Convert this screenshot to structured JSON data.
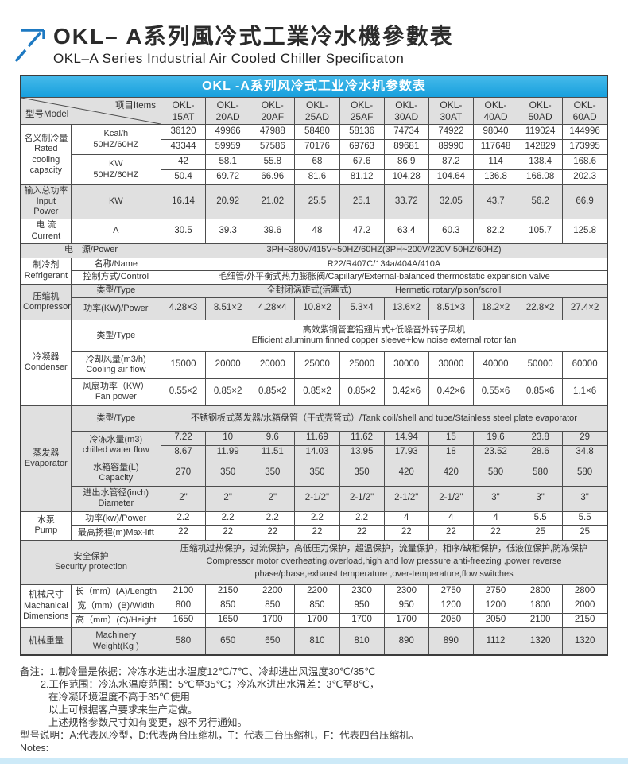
{
  "page": {
    "title_cn": "OKL– A系列風冷式工業冷水機參數表",
    "subtitle_en": "OKL–A Series Industrial Air Cooled Chiller Specificaton"
  },
  "colors": {
    "banner_blue": "#29a9e1",
    "row_gray": "#e0e0e0",
    "accent_blue": "#1d79c2",
    "footer_strip": "#cdeaf8"
  },
  "table": {
    "banner": "OKL -A系列风冷式工业冷水机参数表",
    "corner": {
      "model": "型号Model",
      "items": "项目Items"
    },
    "models": [
      "OKL-15AT",
      "OKL-20AD",
      "OKL-20AF",
      "OKL-25AD",
      "OKL-25AF",
      "OKL-30AD",
      "OKL-30AT",
      "OKL-40AD",
      "OKL-50AD",
      "OKL-60AD"
    ],
    "labels": {
      "rated": "名义制冷量\nRated\ncooling\ncapacity",
      "kcal": "Kcal/h\n50HZ/60HZ",
      "kw": "KW\n50HZ/60HZ",
      "input_power": "输入总功率\nInput Power",
      "input_unit": "KW",
      "current": "电 流\nCurrent",
      "current_unit": "A",
      "power_source": "电　源/Power",
      "refrigerant": "制冷剂\nRefrigerant",
      "name": "名称/Name",
      "control": "控制方式/Control",
      "compressor": "压缩机\nCompressor",
      "type": "类型/Type",
      "comp_power": "功率(KW)/Power",
      "condenser": "冷凝器\nCondenser",
      "air_flow": "冷却风量(m3/h)\nCooling air flow",
      "fan_power": "风扇功率（KW）\nFan power",
      "evaporator": "蒸发器\nEvaporator",
      "chw": "冷冻水量(m3)\nchilled water flow",
      "tank": "水箱容量(L)\nCapacity",
      "diameter": "进出水管径(inch)\nDiameter",
      "pump": "水泵\nPump",
      "pump_power": "功率(kw)/Power",
      "max_lift": "最高扬程(m)Max-lift",
      "security": "安全保护\nSecurity protection",
      "dimensions": "机械尺寸\nMachanical\nDimensions",
      "length": "长（mm）(A)/Length",
      "width": "宽（mm）(B)/Width",
      "height": "高（mm）(C)/Height",
      "weight_cn": "机械重量",
      "weight_en": "Machinery\nWeight(Kg )"
    },
    "merged": {
      "power_source_value": "3PH~380V/415V~50HZ/60HZ(3PH~200V/220V  50HZ/60HZ)",
      "refrigerant_name": "R22/R407C/134a/404A/410A",
      "control_value": "毛细管/外平衡式热力膨胀阀/Capillary/External-balanced thermostatic expansion valve",
      "compressor_type_cn": "全封闭涡旋式(活塞式)",
      "compressor_type_en": "Hermetic rotary/pison/scroll",
      "condenser_type_cn": "高效紫铜管套铝翅片式+低噪音外转子风机",
      "condenser_type_en": "Efficient aluminum finned copper sleeve+low noise external rotor fan",
      "evaporator_type": "不锈钢板式蒸发器/水箱盘管（干式壳管式）/Tank coil/shell and tube/Stainless steel plate evaporator",
      "security_value": "压缩机过热保护，过流保护，高低压力保护，超温保护，流量保护，相序/缺相保护，低液位保护,防冻保护\nCompressor motor overheating,overload,high and low pressure,anti-freezing ,power reverse\nphase/phase,exhaust temperature ,over-temperature,flow switches"
    },
    "values": {
      "kcal_50": [
        "36120",
        "49966",
        "47988",
        "58480",
        "58136",
        "74734",
        "74922",
        "98040",
        "119024",
        "144996"
      ],
      "kcal_60": [
        "43344",
        "59959",
        "57586",
        "70176",
        "69763",
        "89681",
        "89990",
        "117648",
        "142829",
        "173995"
      ],
      "kw_50": [
        "42",
        "58.1",
        "55.8",
        "68",
        "67.6",
        "86.9",
        "87.2",
        "114",
        "138.4",
        "168.6"
      ],
      "kw_60": [
        "50.4",
        "69.72",
        "66.96",
        "81.6",
        "81.12",
        "104.28",
        "104.64",
        "136.8",
        "166.08",
        "202.3"
      ],
      "input_power": [
        "16.14",
        "20.92",
        "21.02",
        "25.5",
        "25.1",
        "33.72",
        "32.05",
        "43.7",
        "56.2",
        "66.9"
      ],
      "current": [
        "30.5",
        "39.3",
        "39.6",
        "48",
        "47.2",
        "63.4",
        "60.3",
        "82.2",
        "105.7",
        "125.8"
      ],
      "comp_power": [
        "4.28×3",
        "8.51×2",
        "4.28×4",
        "10.8×2",
        "5.3×4",
        "13.6×2",
        "8.51×3",
        "18.2×2",
        "22.8×2",
        "27.4×2"
      ],
      "air_flow": [
        "15000",
        "20000",
        "20000",
        "25000",
        "25000",
        "30000",
        "30000",
        "40000",
        "50000",
        "60000"
      ],
      "fan_power": [
        "0.55×2",
        "0.85×2",
        "0.85×2",
        "0.85×2",
        "0.85×2",
        "0.42×6",
        "0.42×6",
        "0.55×6",
        "0.85×6",
        "1.1×6"
      ],
      "chw_50": [
        "7.22",
        "10",
        "9.6",
        "11.69",
        "11.62",
        "14.94",
        "15",
        "19.6",
        "23.8",
        "29"
      ],
      "chw_60": [
        "8.67",
        "11.99",
        "11.51",
        "14.03",
        "13.95",
        "17.93",
        "18",
        "23.52",
        "28.6",
        "34.8"
      ],
      "tank": [
        "270",
        "350",
        "350",
        "350",
        "350",
        "420",
        "420",
        "580",
        "580",
        "580"
      ],
      "diameter": [
        "2\"",
        "2\"",
        "2\"",
        "2-1/2\"",
        "2-1/2\"",
        "2-1/2\"",
        "2-1/2\"",
        "3\"",
        "3\"",
        "3\""
      ],
      "pump_power": [
        "2.2",
        "2.2",
        "2.2",
        "2.2",
        "2.2",
        "4",
        "4",
        "4",
        "5.5",
        "5.5"
      ],
      "max_lift": [
        "22",
        "22",
        "22",
        "22",
        "22",
        "22",
        "22",
        "22",
        "25",
        "25"
      ],
      "length": [
        "2100",
        "2150",
        "2200",
        "2200",
        "2300",
        "2300",
        "2750",
        "2750",
        "2800",
        "2800"
      ],
      "width": [
        "800",
        "850",
        "850",
        "850",
        "950",
        "950",
        "1200",
        "1200",
        "1800",
        "2000"
      ],
      "height": [
        "1650",
        "1650",
        "1700",
        "1700",
        "1700",
        "1700",
        "2050",
        "2050",
        "2100",
        "2150"
      ],
      "weight": [
        "580",
        "650",
        "650",
        "810",
        "810",
        "890",
        "890",
        "1112",
        "1320",
        "1320"
      ]
    }
  },
  "notes": {
    "lines": [
      "备注：1.制冷量是依据：冷冻水进出水温度12℃/7℃、冷却进出风温度30℃/35℃",
      "2.工作范围：冷冻水温度范围：5℃至35℃；冷冻水进出水温差：3℃至8℃，",
      "在冷凝环境温度不高于35℃使用",
      "以上可根据客户要求来生产定做。",
      "上述规格参数尺寸如有变更，恕不另行通知。",
      "型号说明：A:代表风冷型，D:代表两台压缩机，T：代表三台压缩机，F：代表四台压缩机。",
      "Notes:"
    ]
  }
}
